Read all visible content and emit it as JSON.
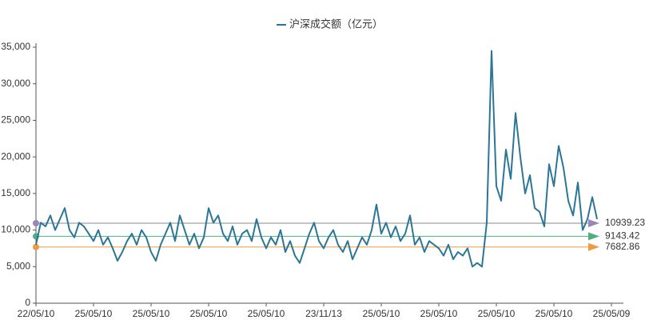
{
  "chart_data": {
    "type": "line",
    "series": [
      {
        "name": "沪深成交额（亿元）",
        "color": "#2b7696",
        "values": [
          8000,
          11000,
          10500,
          12000,
          10000,
          11500,
          13000,
          10000,
          9000,
          11000,
          10500,
          9500,
          8500,
          10000,
          8000,
          9000,
          7500,
          5800,
          7000,
          8500,
          9500,
          8000,
          10000,
          9000,
          7000,
          5800,
          8000,
          9500,
          11000,
          8500,
          12000,
          10000,
          8000,
          9500,
          7500,
          9000,
          13000,
          11000,
          12000,
          9500,
          8500,
          10500,
          8000,
          9500,
          10000,
          8500,
          11500,
          9000,
          7500,
          9000,
          8000,
          10000,
          7000,
          8500,
          6500,
          5500,
          7500,
          9500,
          11000,
          8500,
          7500,
          9000,
          10000,
          8000,
          7000,
          8500,
          6000,
          7500,
          9000,
          8000,
          10000,
          13500,
          9500,
          11000,
          9000,
          10500,
          8500,
          9500,
          12000,
          8000,
          9000,
          7000,
          8500,
          8000,
          7500,
          6500,
          8000,
          6000,
          7000,
          6500,
          7500,
          5000,
          5500,
          5000,
          11000,
          34500,
          16000,
          14000,
          21000,
          17000,
          26000,
          20000,
          15000,
          17500,
          13000,
          12500,
          10500,
          19000,
          16000,
          21500,
          18500,
          14000,
          12000,
          16500,
          10000,
          11500,
          14500,
          11500,
          null,
          null,
          null
        ]
      }
    ],
    "categories": [
      "22/05/10",
      null,
      null,
      null,
      null,
      null,
      null,
      null,
      null,
      null,
      null,
      null,
      "25/05/10",
      null,
      null,
      null,
      null,
      null,
      null,
      null,
      null,
      null,
      null,
      null,
      "25/05/10",
      null,
      null,
      null,
      null,
      null,
      null,
      null,
      null,
      null,
      null,
      null,
      "25/05/10",
      null,
      null,
      null,
      null,
      null,
      null,
      null,
      null,
      null,
      null,
      null,
      "25/05/10",
      null,
      null,
      null,
      null,
      null,
      null,
      null,
      null,
      null,
      null,
      null,
      "23/11/13",
      null,
      null,
      null,
      null,
      null,
      null,
      null,
      null,
      null,
      null,
      null,
      "25/05/10",
      null,
      null,
      null,
      null,
      null,
      null,
      null,
      null,
      null,
      null,
      null,
      "25/05/10",
      null,
      null,
      null,
      null,
      null,
      null,
      null,
      null,
      null,
      null,
      null,
      "25/05/10",
      null,
      null,
      null,
      null,
      null,
      null,
      null,
      null,
      null,
      null,
      null,
      "25/05/10",
      null,
      null,
      null,
      null,
      null,
      null,
      null,
      null,
      null,
      null,
      null,
      "25/05/09"
    ],
    "ylim": [
      0,
      35000
    ],
    "yticks": [
      0,
      {
        "value": 5000,
        "label": "5,000"
      },
      {
        "value": 10000,
        "label": "10,000"
      },
      {
        "value": 15000,
        "label": "15,000"
      },
      {
        "value": 20000,
        "label": "20,000"
      },
      {
        "value": 25000,
        "label": "25,000"
      },
      {
        "value": 30000,
        "label": "30,000"
      },
      {
        "value": 35000,
        "label": "35,000"
      }
    ],
    "reference_lines": [
      {
        "value": 10939.23,
        "color": "#9a86b8"
      },
      {
        "value": 9143.42,
        "color": "#4fae80"
      },
      {
        "value": 7682.86,
        "color": "#ee9a42"
      }
    ]
  }
}
